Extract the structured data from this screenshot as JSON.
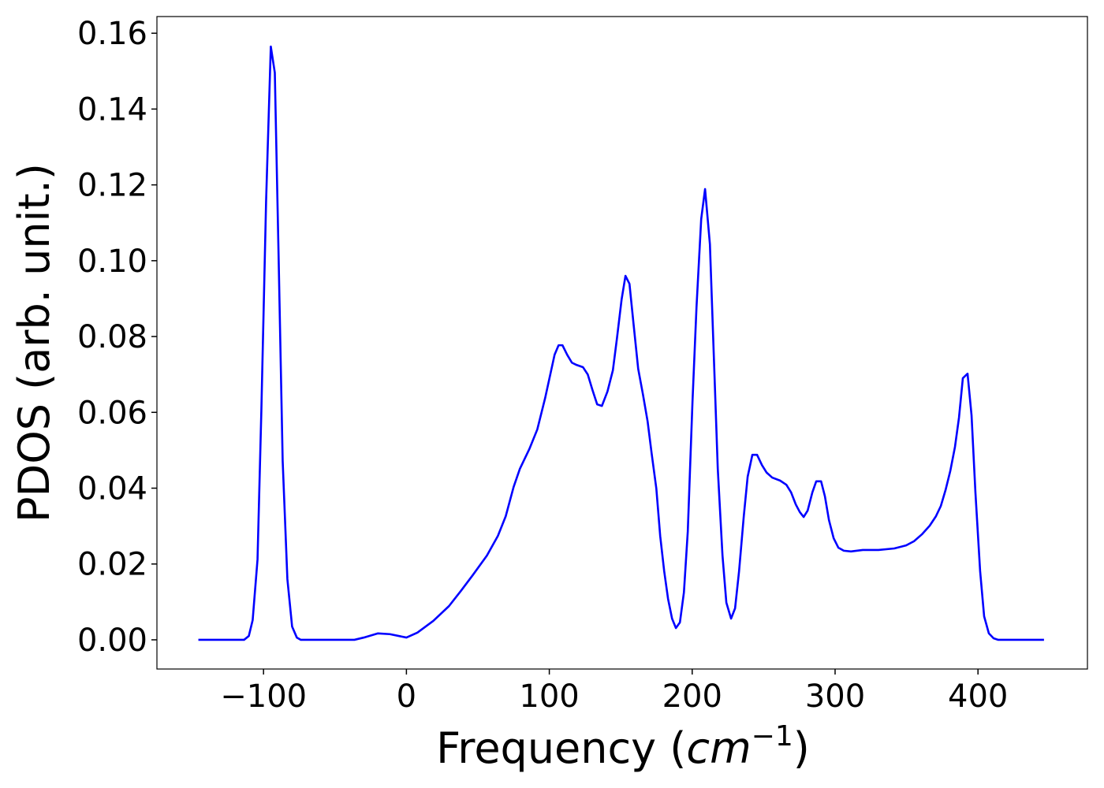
{
  "chart_data": {
    "type": "line",
    "xlabel": [
      "Frequency (",
      "cm",
      "−1",
      ")"
    ],
    "ylabel": "PDOS (arb. unit.)",
    "xlim": [
      -174.6,
      476.6
    ],
    "ylim": [
      -0.0077,
      0.1644
    ],
    "xticks": [
      {
        "value": -100,
        "label": "−100"
      },
      0,
      100,
      200,
      300,
      400
    ],
    "yticks": [
      {
        "value": 0,
        "label": "0.00"
      },
      0.02,
      0.04,
      0.06,
      0.08,
      {
        "value": 0.1,
        "label": "0.10"
      },
      0.12,
      0.14,
      0.16
    ],
    "grid": false,
    "series": [
      {
        "color": "#0000ff",
        "x": [
          -145.6,
          -113.6,
          -110.3,
          -107.6,
          -104.2,
          -101.5,
          -98.2,
          -94.9,
          -92.1,
          -89.4,
          -86.6,
          -83.3,
          -80,
          -76.7,
          -73.9,
          -36.4,
          -29.8,
          -19.9,
          -11.6,
          0,
          7.7,
          18.8,
          29.8,
          38.1,
          46.3,
          56.3,
          64,
          69.5,
          75,
          79.4,
          86,
          91.6,
          97.1,
          103.7,
          106.5,
          109.2,
          112.5,
          115.8,
          119.1,
          123.6,
          126.9,
          130.2,
          133.5,
          136.8,
          140.7,
          144.5,
          147.3,
          150.6,
          153.3,
          156.1,
          158.9,
          162.2,
          165.5,
          168.8,
          171.6,
          174.9,
          177.6,
          180.4,
          183.1,
          185.9,
          188.6,
          191.4,
          194.2,
          196.9,
          200.2,
          203,
          206.3,
          209,
          212.4,
          215.1,
          217.9,
          221.2,
          223.9,
          227.2,
          230,
          232.8,
          236.1,
          238.8,
          242.1,
          245.4,
          248.8,
          252.1,
          256,
          261.5,
          265.9,
          269.2,
          272.5,
          275.3,
          278,
          280.8,
          284.1,
          286.8,
          290.2,
          292.9,
          295.7,
          299,
          302.3,
          306.1,
          311.1,
          319.4,
          330.4,
          341.4,
          349.7,
          355.2,
          360.7,
          366.2,
          370.6,
          374,
          377.3,
          380.6,
          383.9,
          386.7,
          389.4,
          392.7,
          395.5,
          398.2,
          401.5,
          404.3,
          407.6,
          410.9,
          414.2,
          446.2
        ],
        "values": [
          0,
          0,
          0.001,
          0.0052,
          0.0212,
          0.0607,
          0.1157,
          0.1565,
          0.1496,
          0.1002,
          0.0472,
          0.016,
          0.0035,
          0.0006,
          0,
          0,
          0.0006,
          0.0017,
          0.0015,
          0.0006,
          0.0019,
          0.005,
          0.0089,
          0.0129,
          0.017,
          0.0222,
          0.0274,
          0.0326,
          0.0403,
          0.0451,
          0.0503,
          0.0555,
          0.0638,
          0.0752,
          0.0777,
          0.0777,
          0.0752,
          0.0731,
          0.0725,
          0.0719,
          0.07,
          0.0659,
          0.0621,
          0.0617,
          0.0655,
          0.0711,
          0.0794,
          0.0898,
          0.096,
          0.0939,
          0.0835,
          0.0715,
          0.0648,
          0.0576,
          0.0492,
          0.0399,
          0.0274,
          0.0181,
          0.0108,
          0.0056,
          0.0031,
          0.0046,
          0.0125,
          0.0285,
          0.0628,
          0.0877,
          0.111,
          0.1189,
          0.1043,
          0.0752,
          0.0451,
          0.0222,
          0.0098,
          0.0056,
          0.0083,
          0.0181,
          0.0326,
          0.043,
          0.0488,
          0.0488,
          0.0461,
          0.0441,
          0.0428,
          0.042,
          0.0409,
          0.0389,
          0.0357,
          0.0337,
          0.0324,
          0.0341,
          0.0389,
          0.0418,
          0.0418,
          0.0378,
          0.0316,
          0.0268,
          0.0243,
          0.0235,
          0.0233,
          0.0237,
          0.0237,
          0.0241,
          0.0249,
          0.026,
          0.0278,
          0.0301,
          0.0326,
          0.0353,
          0.0395,
          0.0445,
          0.0509,
          0.0586,
          0.069,
          0.0702,
          0.0592,
          0.0389,
          0.0181,
          0.0062,
          0.0017,
          0.0004,
          0,
          0
        ]
      }
    ]
  }
}
